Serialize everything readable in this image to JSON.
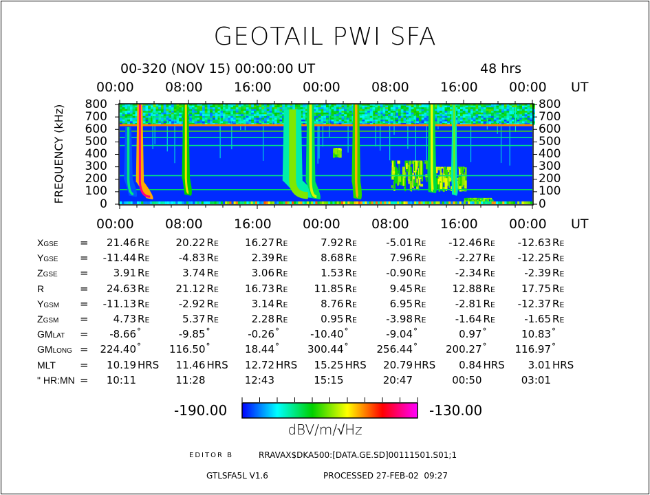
{
  "title": "GEOTAIL PWI SFA",
  "header": {
    "start": "00-320 (NOV 15) 00:00:00 UT",
    "span": "48 hrs"
  },
  "chart_data": {
    "type": "heatmap",
    "ylabel": "FREQUENCY (kHz)",
    "xlim_hours": [
      0,
      48
    ],
    "ylim": [
      0,
      800
    ],
    "x_tick_labels": [
      "00:00",
      "08:00",
      "16:00",
      "00:00",
      "08:00",
      "16:00",
      "00:00"
    ],
    "x_unit": "UT",
    "y_tick_labels": [
      "0",
      "100",
      "200",
      "300",
      "400",
      "500",
      "600",
      "700",
      "800"
    ],
    "colorbar": {
      "min": "-190.00",
      "max": "-130.00",
      "unit": "dBV/m/√Hz",
      "range": [
        -190,
        -130
      ],
      "colors": [
        "#0000ff",
        "#00ffff",
        "#00d000",
        "#ffff00",
        "#ff0000",
        "#ff00ff"
      ]
    },
    "background_db": -188,
    "noise_band_khz": [
      640,
      800
    ],
    "lines": [
      {
        "f": 637,
        "db": -148
      },
      {
        "f": 585,
        "db": -162
      },
      {
        "f": 535,
        "db": -172
      },
      {
        "f": 470,
        "db": -172
      },
      {
        "f": 228,
        "db": -172
      },
      {
        "f": 116,
        "db": -170
      },
      {
        "f": 8,
        "db": -168
      }
    ],
    "bursts": [
      {
        "t": 1.0,
        "f_top": 620,
        "f_bot": 80,
        "drift": 0.6,
        "w": 0.35,
        "db": -172
      },
      {
        "t": 2.35,
        "f_top": 800,
        "f_bot": 60,
        "drift": 1.2,
        "w": 0.3,
        "db": -136
      },
      {
        "t": 7.7,
        "f_top": 800,
        "f_bot": 90,
        "drift": 0.3,
        "w": 0.3,
        "db": -152
      },
      {
        "t": 20.1,
        "f_top": 760,
        "f_bot": 70,
        "drift": 1.8,
        "w": 1.0,
        "db": -160
      },
      {
        "t": 22.2,
        "f_top": 800,
        "f_bot": 60,
        "drift": 0.7,
        "w": 0.4,
        "db": -156
      },
      {
        "t": 27.5,
        "f_top": 800,
        "f_bot": 60,
        "drift": 0.2,
        "w": 0.35,
        "db": -150
      },
      {
        "t": 36.3,
        "f_top": 800,
        "f_bot": 110,
        "drift": 0.1,
        "w": 0.35,
        "db": -155
      },
      {
        "t": 38.9,
        "f_top": 800,
        "f_bot": 90,
        "drift": 0.1,
        "w": 0.2,
        "db": -160
      }
    ],
    "patches": [
      {
        "t0": 24.8,
        "t1": 25.5,
        "f0": 370,
        "f1": 450,
        "db": -168
      },
      {
        "t0": 31.5,
        "t1": 35.7,
        "f0": 100,
        "f1": 350,
        "db": -168
      },
      {
        "t0": 36.5,
        "t1": 40.2,
        "f0": 100,
        "f1": 300,
        "db": -166
      },
      {
        "t0": 40.0,
        "t1": 43.2,
        "f0": 0,
        "f1": 50,
        "db": -170
      }
    ]
  },
  "table": {
    "rows": [
      {
        "label": "X",
        "sub": "GSE",
        "values": [
          "21.46",
          "20.22",
          "16.27",
          "7.92",
          "-5.01",
          "-12.46",
          "-12.63"
        ],
        "unit": "RE"
      },
      {
        "label": "Y",
        "sub": "GSE",
        "values": [
          "-11.44",
          "-4.83",
          "2.39",
          "8.68",
          "7.96",
          "-2.27",
          "-12.25"
        ],
        "unit": "RE"
      },
      {
        "label": "Z",
        "sub": "GSE",
        "values": [
          "3.91",
          "3.74",
          "3.06",
          "1.53",
          "-0.90",
          "-2.34",
          "-2.39"
        ],
        "unit": "RE"
      },
      {
        "label": "R",
        "sub": "",
        "values": [
          "24.63",
          "21.12",
          "16.73",
          "11.85",
          "9.45",
          "12.88",
          "17.75"
        ],
        "unit": "RE"
      },
      {
        "label": "Y",
        "sub": "GSM",
        "values": [
          "-11.13",
          "-2.92",
          "3.14",
          "8.76",
          "6.95",
          "-2.81",
          "-12.37"
        ],
        "unit": "RE"
      },
      {
        "label": "Z",
        "sub": "GSM",
        "values": [
          "4.73",
          "5.37",
          "2.28",
          "0.95",
          "-3.98",
          "-1.64",
          "-1.65"
        ],
        "unit": "RE"
      },
      {
        "label": "GM",
        "sub": "LAT",
        "values": [
          "-8.66",
          "-9.85",
          "-0.26",
          "-10.40",
          "-9.04",
          "0.97",
          "10.83"
        ],
        "unit": "°"
      },
      {
        "label": "GM",
        "sub": "LONG",
        "values": [
          "224.40",
          "116.50",
          "18.44",
          "300.44",
          "256.44",
          "200.27",
          "116.97"
        ],
        "unit": "°"
      },
      {
        "label": "MLT",
        "sub": "",
        "values": [
          "10.19",
          "11.46",
          "12.72",
          "15.25",
          "20.79",
          "0.84",
          "3.01"
        ],
        "unit": "HRS"
      },
      {
        "label": "\" HR:MN",
        "sub": "",
        "values": [
          "10:11",
          "11:28",
          "12:43",
          "15:15",
          "20:47",
          "00:50",
          "03:01"
        ],
        "unit": ""
      }
    ],
    "eq": "="
  },
  "footer": {
    "editor": "EDITOR B",
    "file": "RRAVAX$DKA500:[DATA.GE.SD]00111501.S01;1",
    "version": "GTLSFA5L V1.6",
    "processed": "PROCESSED 27-FEB-02  09:27"
  }
}
